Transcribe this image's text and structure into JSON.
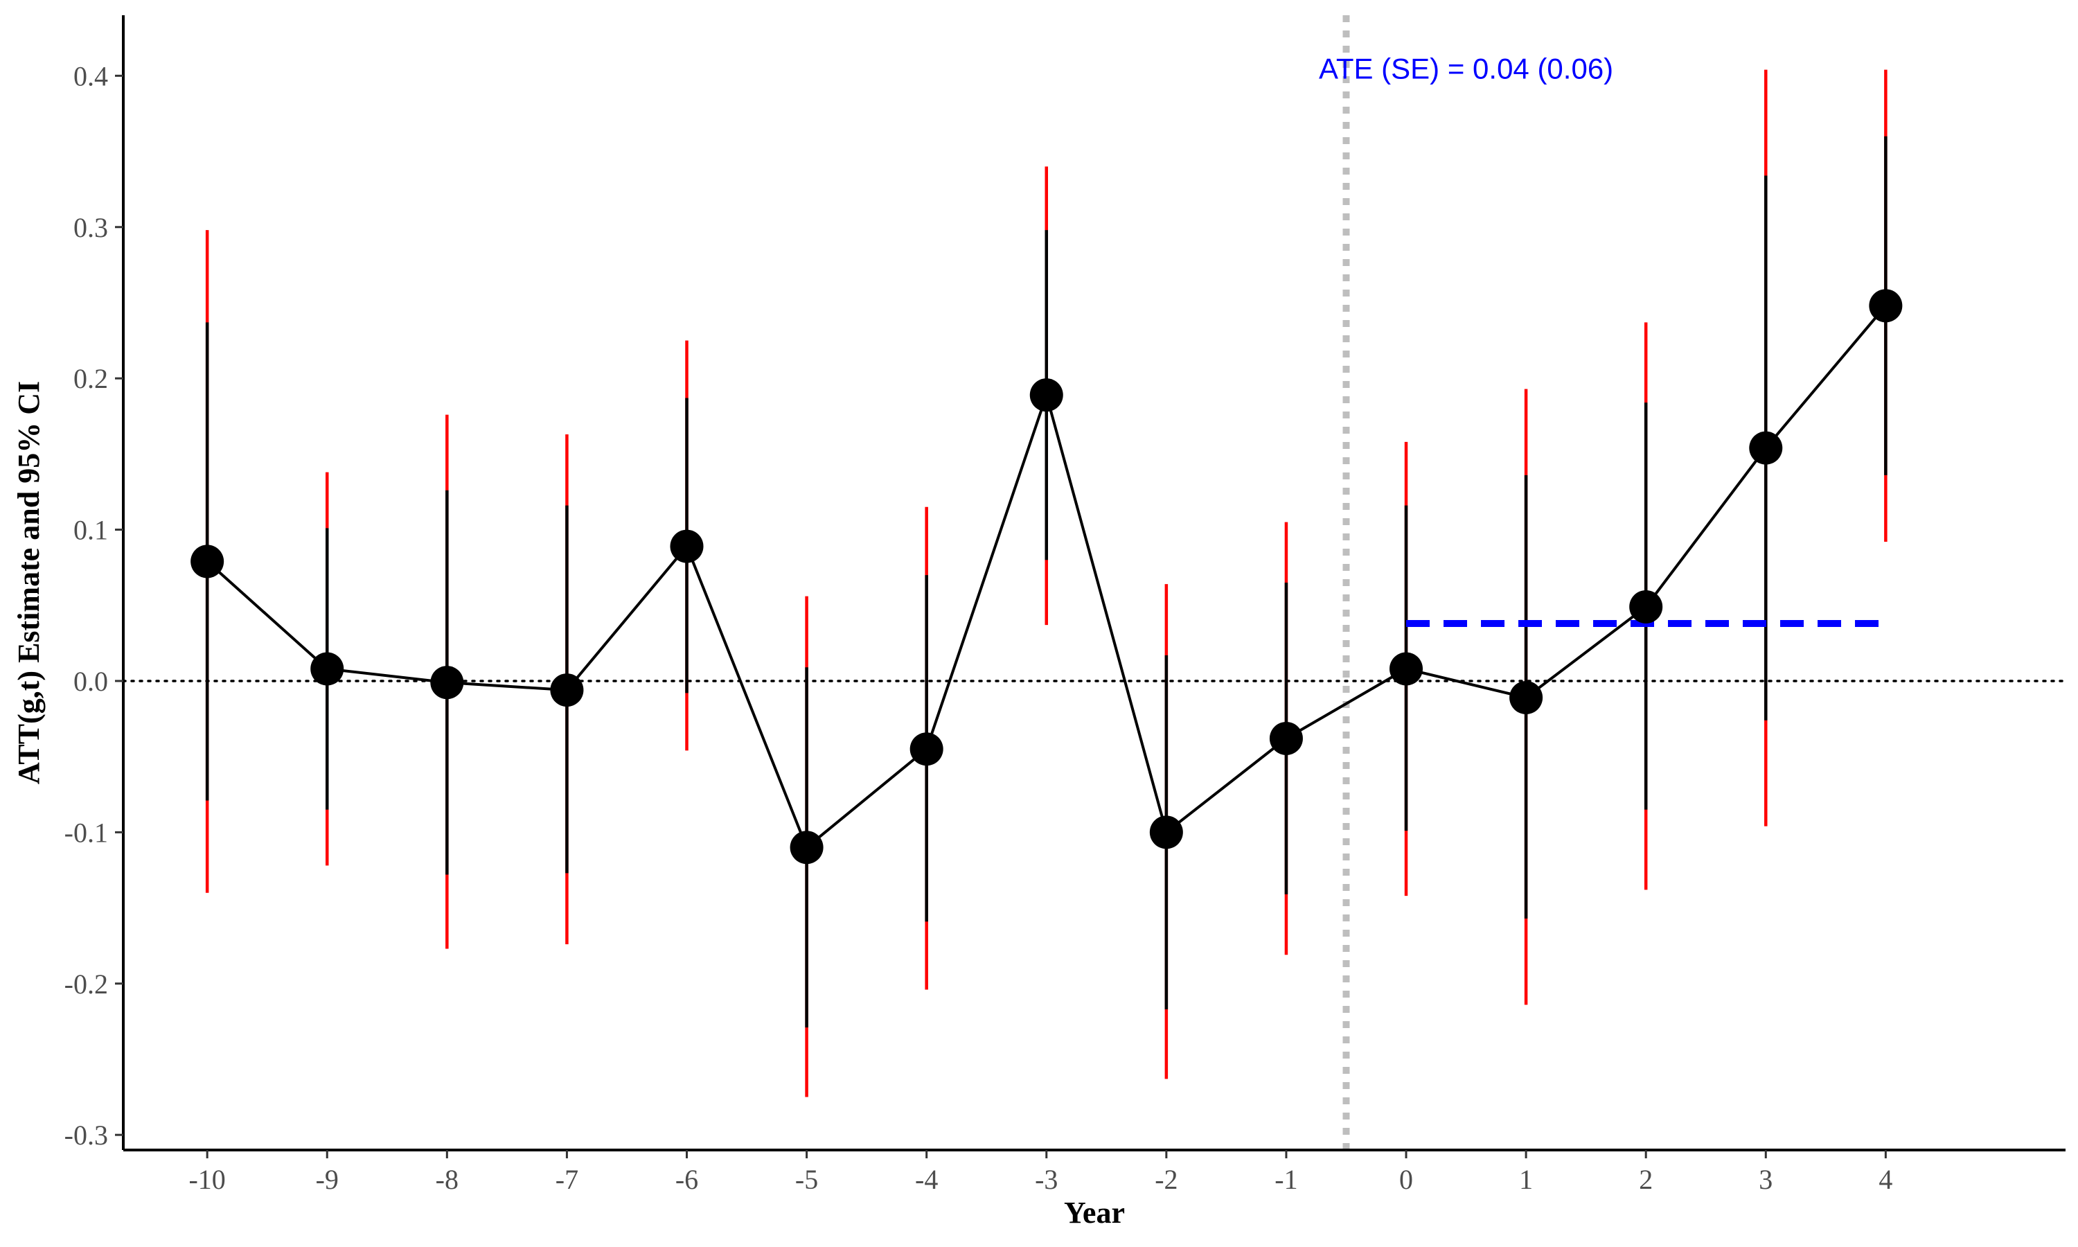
{
  "chart_data": {
    "type": "scatter",
    "title": "",
    "xlabel": "Year",
    "ylabel": "ATT(g,t) Estimate and 95% CI",
    "xlim": [
      -10.7,
      5.5
    ],
    "ylim": [
      -0.31,
      0.44
    ],
    "x_ticks": [
      "-10",
      "-9",
      "-8",
      "-7",
      "-6",
      "-5",
      "-4",
      "-3",
      "-2",
      "-1",
      "0",
      "1",
      "2",
      "3",
      "4"
    ],
    "y_ticks": [
      "-0.3",
      "-0.2",
      "-0.1",
      "0.0",
      "0.1",
      "0.2",
      "0.3",
      "0.4"
    ],
    "grid": false,
    "legend": "none",
    "reference_line_y": 0,
    "treatment_line_x": -0.5,
    "points": [
      {
        "x": -10,
        "y": 0.079,
        "ci_inner": [
          -0.079,
          0.237
        ],
        "ci_outer": [
          -0.14,
          0.298
        ]
      },
      {
        "x": -9,
        "y": 0.008,
        "ci_inner": [
          -0.085,
          0.101
        ],
        "ci_outer": [
          -0.122,
          0.138
        ]
      },
      {
        "x": -8,
        "y": -0.001,
        "ci_inner": [
          -0.128,
          0.126
        ],
        "ci_outer": [
          -0.177,
          0.176
        ]
      },
      {
        "x": -7,
        "y": -0.006,
        "ci_inner": [
          -0.127,
          0.116
        ],
        "ci_outer": [
          -0.174,
          0.163
        ]
      },
      {
        "x": -6,
        "y": 0.089,
        "ci_inner": [
          -0.008,
          0.187
        ],
        "ci_outer": [
          -0.046,
          0.225
        ]
      },
      {
        "x": -5,
        "y": -0.11,
        "ci_inner": [
          -0.229,
          0.009
        ],
        "ci_outer": [
          -0.275,
          0.056
        ]
      },
      {
        "x": -4,
        "y": -0.045,
        "ci_inner": [
          -0.159,
          0.07
        ],
        "ci_outer": [
          -0.204,
          0.115
        ]
      },
      {
        "x": -3,
        "y": 0.189,
        "ci_inner": [
          0.08,
          0.298
        ],
        "ci_outer": [
          0.037,
          0.34
        ]
      },
      {
        "x": -2,
        "y": -0.1,
        "ci_inner": [
          -0.217,
          0.017
        ],
        "ci_outer": [
          -0.263,
          0.064
        ]
      },
      {
        "x": -1,
        "y": -0.038,
        "ci_inner": [
          -0.141,
          0.065
        ],
        "ci_outer": [
          -0.181,
          0.105
        ]
      },
      {
        "x": 0,
        "y": 0.008,
        "ci_inner": [
          -0.099,
          0.116
        ],
        "ci_outer": [
          -0.142,
          0.158
        ]
      },
      {
        "x": 1,
        "y": -0.011,
        "ci_inner": [
          -0.157,
          0.136
        ],
        "ci_outer": [
          -0.214,
          0.193
        ]
      },
      {
        "x": 2,
        "y": 0.049,
        "ci_inner": [
          -0.085,
          0.184
        ],
        "ci_outer": [
          -0.138,
          0.237
        ]
      },
      {
        "x": 3,
        "y": 0.154,
        "ci_inner": [
          -0.026,
          0.334
        ],
        "ci_outer": [
          -0.096,
          0.404
        ]
      },
      {
        "x": 4,
        "y": 0.248,
        "ci_inner": [
          0.136,
          0.36
        ],
        "ci_outer": [
          0.092,
          0.404
        ]
      }
    ],
    "ate": {
      "value": 0.038,
      "x_range": [
        0,
        4
      ],
      "color": "#0000ff"
    },
    "annotation": {
      "text": "ATE (SE) = 0.04 (0.06)",
      "x": 0.5,
      "y": 0.405,
      "color": "#0000ff"
    },
    "colors": {
      "points": "#000000",
      "ci_inner": "#000000",
      "ci_outer": "#ff0000",
      "treatment_line": "#bebebe"
    }
  }
}
